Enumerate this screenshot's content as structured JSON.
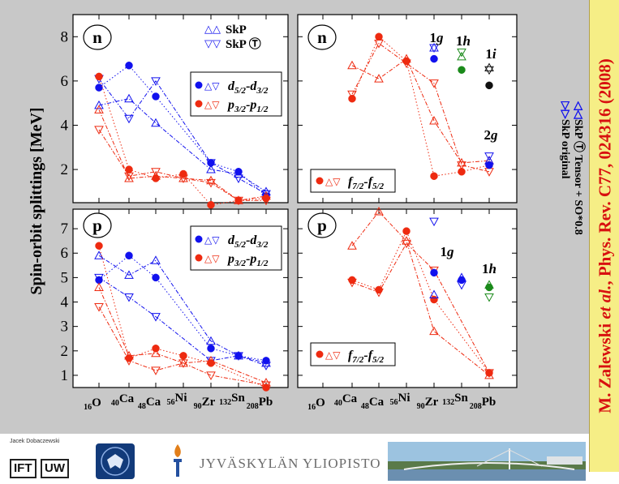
{
  "y_axis_title": "Spin-orbit splittings [MeV]",
  "side_citation": {
    "author": "M. Zalewski",
    "etal": "et al.",
    "journal": ", Phys. Rev. C77, 024316 (2008)"
  },
  "vertical_legend": {
    "line1": "SkP original",
    "line2": "SkP Ⓣ Tensor + SO*0.8",
    "line1_symbols": "▷▷",
    "line2_symbols": "◁◁"
  },
  "colors": {
    "blue": "#1111ee",
    "red": "#ee2a10",
    "green": "#1a8a1a",
    "black": "#111111",
    "grid_blue": "#1111ee",
    "panel_bg": "#ffffff",
    "frame_bg": "#c8c8c8",
    "banner_bg": "#f6ee86",
    "banner_text": "#d81010"
  },
  "x_tick_labels": [
    {
      "mass": "16",
      "sym": "O"
    },
    {
      "mass": "40",
      "sym": "Ca"
    },
    {
      "mass": "48",
      "sym": "Ca"
    },
    {
      "mass": "56",
      "sym": "Ni"
    },
    {
      "mass": "90",
      "sym": "Zr"
    },
    {
      "mass": "132",
      "sym": "Sn"
    },
    {
      "mass": "208",
      "sym": "Pb"
    }
  ],
  "panels": {
    "top_left": {
      "badge": "n",
      "legend_skp": "SkP",
      "legend_skp_tensor": "SkP Ⓣ",
      "legend_d": "d5/2-d3/2",
      "legend_p": "p3/2-p1/2"
    },
    "top_right": {
      "badge": "n",
      "legend_f": "f7/2-f5/2",
      "labels": [
        "1g",
        "1h",
        "1i",
        "2g"
      ]
    },
    "bottom_left": {
      "badge": "p",
      "legend_d": "d5/2-d3/2",
      "legend_p": "p3/2-p1/2"
    },
    "bottom_right": {
      "badge": "p",
      "legend_f": "f7/2-f5/2",
      "labels": [
        "1g",
        "1h"
      ]
    }
  },
  "footer": {
    "ift_person": "Jacek Dobaczewski",
    "ift_left": "IFT",
    "ift_right": "UW",
    "jyu": "JYVÄSKYLÄN YLIOPISTO"
  },
  "chart_data": [
    {
      "type": "line",
      "panel": "n, left",
      "ylim": [
        0.5,
        9
      ],
      "yticks": [
        2,
        4,
        6,
        8
      ],
      "categories": [
        "16O",
        "40Ca",
        "48Ca",
        "56Ni",
        "90Zr",
        "132Sn",
        "208Pb"
      ],
      "series": [
        {
          "name": "d5/2-d3/2",
          "values": [
            5.7,
            6.7,
            5.3,
            null,
            2.3,
            1.9,
            0.8
          ]
        },
        {
          "name": "d5/2-d3/2 SkP",
          "values": [
            4.9,
            5.2,
            4.1,
            null,
            2.0,
            1.8,
            1.0
          ]
        },
        {
          "name": "d5/2-d3/2 SkP tensor",
          "values": [
            6.1,
            4.3,
            6.0,
            null,
            2.3,
            1.6,
            0.9
          ]
        },
        {
          "name": "p3/2-p1/2",
          "values": [
            6.2,
            2.0,
            1.6,
            1.8,
            0.4,
            0.6,
            0.7
          ]
        },
        {
          "name": "p3/2-p1/2 SkP",
          "values": [
            4.7,
            1.6,
            1.7,
            1.6,
            1.5,
            0.6,
            0.8
          ]
        },
        {
          "name": "p3/2-p1/2 SkP tensor",
          "values": [
            3.8,
            1.7,
            1.9,
            1.6,
            1.4,
            0.6,
            0.6
          ]
        }
      ]
    },
    {
      "type": "line",
      "panel": "n, right",
      "ylim": [
        0.5,
        9
      ],
      "yticks": [
        2,
        4,
        6,
        8
      ],
      "categories": [
        "16O",
        "40Ca",
        "48Ca",
        "56Ni",
        "90Zr",
        "132Sn",
        "208Pb"
      ],
      "series": [
        {
          "name": "f7/2-f5/2",
          "values": [
            null,
            5.2,
            8.0,
            6.9,
            1.7,
            1.9,
            2.2
          ]
        },
        {
          "name": "f7/2-f5/2 SkP",
          "values": [
            null,
            6.7,
            6.1,
            7.0,
            4.2,
            2.3,
            2.4
          ]
        },
        {
          "name": "f7/2-f5/2 SkP tensor",
          "values": [
            null,
            5.4,
            7.7,
            6.8,
            5.9,
            2.2,
            1.9
          ]
        }
      ],
      "extra_points": [
        {
          "label": "1g",
          "x": "90Zr",
          "filled": 7.0,
          "open_up": 7.5,
          "open_down": 7.5
        },
        {
          "label": "1h",
          "x": "132Sn",
          "filled": 6.5,
          "open_up": 7.1,
          "open_down": 7.3
        },
        {
          "label": "1i",
          "x": "208Pb",
          "filled": 5.8,
          "open_up": 6.6,
          "open_down": 6.5
        },
        {
          "label": "2g",
          "x": "208Pb",
          "filled": 2.2,
          "open_up": 2.4,
          "open_down": 2.6
        }
      ]
    },
    {
      "type": "line",
      "panel": "p, left",
      "ylim": [
        0.5,
        7.8
      ],
      "yticks": [
        1,
        2,
        3,
        4,
        5,
        6,
        7
      ],
      "categories": [
        "16O",
        "40Ca",
        "48Ca",
        "56Ni",
        "90Zr",
        "132Sn",
        "208Pb"
      ],
      "series": [
        {
          "name": "d5/2-d3/2",
          "values": [
            4.9,
            5.9,
            5.0,
            null,
            2.1,
            1.8,
            1.6
          ]
        },
        {
          "name": "d5/2-d3/2 SkP",
          "values": [
            5.9,
            5.1,
            5.7,
            null,
            2.4,
            1.8,
            1.5
          ]
        },
        {
          "name": "d5/2-d3/2 SkP tensor",
          "values": [
            5.0,
            4.2,
            3.4,
            null,
            1.6,
            1.8,
            1.4
          ]
        },
        {
          "name": "p3/2-p1/2",
          "values": [
            6.3,
            1.7,
            2.1,
            1.8,
            1.5,
            null,
            0.5
          ]
        },
        {
          "name": "p3/2-p1/2 SkP",
          "values": [
            4.6,
            1.8,
            1.9,
            1.5,
            1.6,
            null,
            0.7
          ]
        },
        {
          "name": "p3/2-p1/2 SkP tensor",
          "values": [
            3.8,
            1.6,
            1.2,
            1.5,
            1.0,
            null,
            0.6
          ]
        }
      ]
    },
    {
      "type": "line",
      "panel": "p, right",
      "ylim": [
        0.5,
        7.8
      ],
      "yticks": [
        1,
        2,
        3,
        4,
        5,
        6,
        7
      ],
      "categories": [
        "16O",
        "40Ca",
        "48Ca",
        "56Ni",
        "90Zr",
        "132Sn",
        "208Pb"
      ],
      "series": [
        {
          "name": "f7/2-f5/2",
          "values": [
            null,
            4.9,
            4.5,
            6.9,
            4.1,
            null,
            1.1
          ]
        },
        {
          "name": "f7/2-f5/2 SkP",
          "values": [
            null,
            6.3,
            7.7,
            6.5,
            2.8,
            null,
            1.0
          ]
        },
        {
          "name": "f7/2-f5/2 SkP tensor",
          "values": [
            null,
            4.8,
            4.4,
            6.4,
            5.3,
            null,
            1.1
          ]
        }
      ],
      "extra_points": [
        {
          "label": "1g",
          "x": "90Zr",
          "filled": 5.2,
          "open_up": 4.3,
          "open_down": 7.3
        },
        {
          "label": "1g",
          "x": "132Sn",
          "filled": 4.9,
          "open_up": 5.0,
          "open_down": 4.7
        },
        {
          "label": "1h",
          "x": "208Pb",
          "filled": 4.6,
          "open_up": 4.7,
          "open_down": 4.2
        }
      ]
    }
  ]
}
